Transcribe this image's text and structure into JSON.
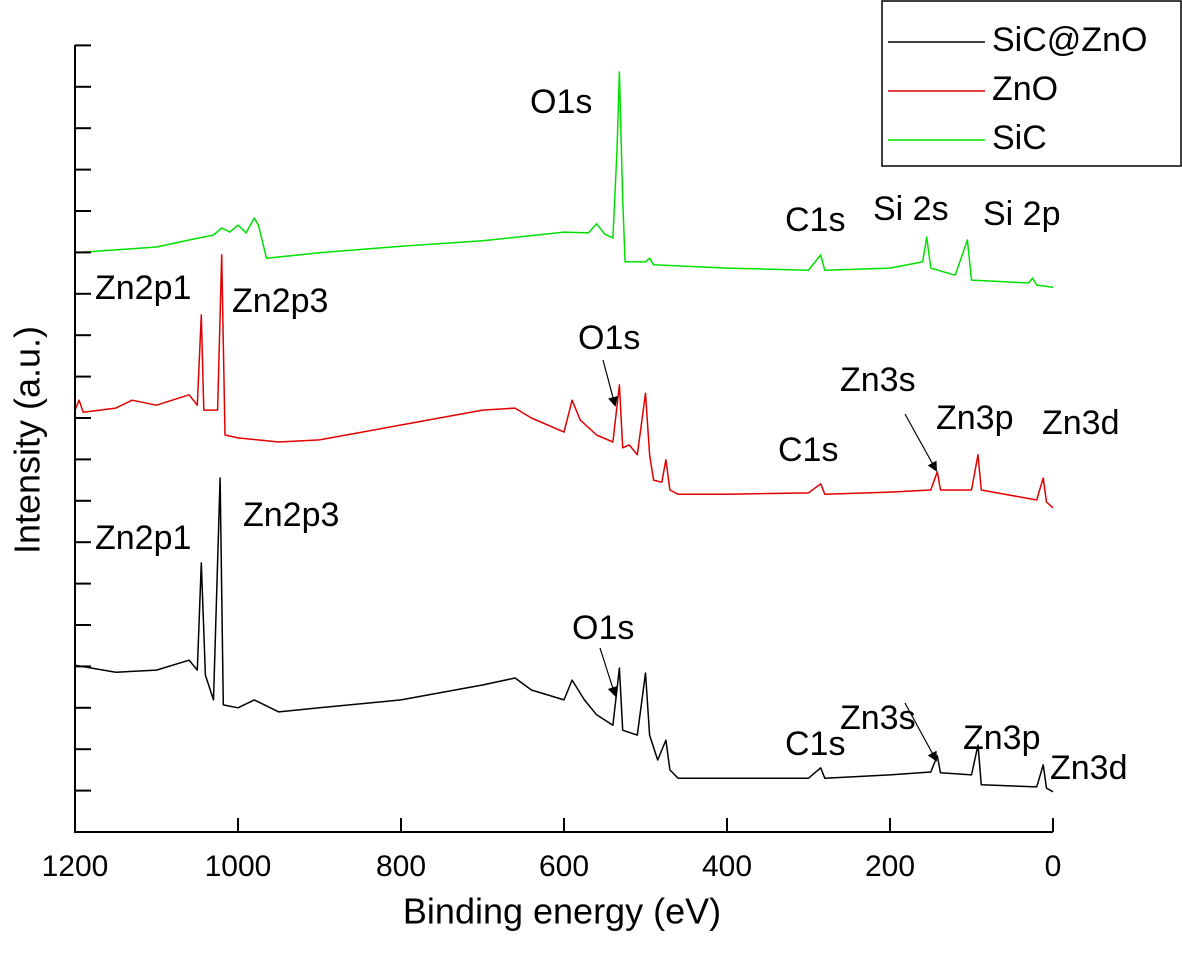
{
  "chart_data": {
    "type": "line",
    "x_label": "Binding energy (eV)",
    "y_label": "Intensity (a.u.)",
    "xlim": [
      1200,
      0
    ],
    "xticks": [
      1200,
      1000,
      800,
      600,
      400,
      200,
      0
    ],
    "ylim": [
      0,
      19
    ],
    "yticks": [
      1,
      2,
      3,
      4,
      5,
      6,
      7,
      8,
      9,
      10,
      11,
      12,
      13,
      14,
      15,
      16,
      17,
      18,
      19
    ],
    "legend_position": "upper right",
    "series": [
      {
        "name": "SiC@ZnO",
        "color": "#000000",
        "x": [
          1200,
          1150,
          1100,
          1060,
          1050,
          1045,
          1040,
          1030,
          1022,
          1018,
          1000,
          980,
          950,
          900,
          800,
          700,
          660,
          640,
          600,
          590,
          575,
          560,
          540,
          532,
          528,
          510,
          500,
          495,
          485,
          475,
          470,
          460,
          400,
          300,
          285,
          280,
          200,
          150,
          142,
          138,
          100,
          92,
          88,
          20,
          12,
          8,
          0
        ],
        "values": [
          4.03,
          3.86,
          3.91,
          4.15,
          3.91,
          6.5,
          3.79,
          3.19,
          8.55,
          3.07,
          3.0,
          3.19,
          2.9,
          3.0,
          3.19,
          3.55,
          3.72,
          3.43,
          3.19,
          3.67,
          3.19,
          2.83,
          2.58,
          3.96,
          2.46,
          2.34,
          3.84,
          2.34,
          1.74,
          2.22,
          1.5,
          1.3,
          1.3,
          1.3,
          1.55,
          1.3,
          1.38,
          1.45,
          1.84,
          1.43,
          1.38,
          2.1,
          1.14,
          1.09,
          1.62,
          1.06,
          0.97
        ]
      },
      {
        "name": "ZnO",
        "color": "#e00000",
        "x": [
          1200,
          1195,
          1190,
          1150,
          1130,
          1100,
          1060,
          1050,
          1045,
          1042,
          1025,
          1020,
          1016,
          1000,
          950,
          900,
          800,
          700,
          660,
          640,
          600,
          590,
          580,
          560,
          540,
          532,
          528,
          520,
          510,
          500,
          495,
          490,
          480,
          475,
          470,
          460,
          400,
          300,
          285,
          280,
          200,
          150,
          142,
          138,
          100,
          92,
          88,
          20,
          12,
          8,
          0
        ],
        "values": [
          10.19,
          10.43,
          10.14,
          10.24,
          10.43,
          10.31,
          10.56,
          10.31,
          12.49,
          10.19,
          10.19,
          13.94,
          9.59,
          9.52,
          9.42,
          9.47,
          9.83,
          10.19,
          10.24,
          10.0,
          9.66,
          10.43,
          9.95,
          9.59,
          9.42,
          10.8,
          9.28,
          9.35,
          9.11,
          10.6,
          9.11,
          8.5,
          8.45,
          8.99,
          8.26,
          8.16,
          8.16,
          8.19,
          8.41,
          8.16,
          8.21,
          8.26,
          8.7,
          8.26,
          8.26,
          9.11,
          8.26,
          8.02,
          8.55,
          7.97,
          7.83
        ]
      },
      {
        "name": "SiC",
        "color": "#00e000",
        "x": [
          1200,
          1100,
          1060,
          1030,
          1020,
          1010,
          1000,
          990,
          980,
          975,
          965,
          900,
          800,
          700,
          600,
          570,
          560,
          550,
          540,
          535,
          532,
          528,
          525,
          500,
          495,
          490,
          400,
          300,
          285,
          280,
          200,
          160,
          155,
          150,
          120,
          105,
          100,
          30,
          25,
          20,
          0
        ],
        "values": [
          13.99,
          14.13,
          14.3,
          14.42,
          14.59,
          14.49,
          14.66,
          14.47,
          14.83,
          14.66,
          13.86,
          13.99,
          14.15,
          14.28,
          14.49,
          14.47,
          14.69,
          14.44,
          14.35,
          16.47,
          18.36,
          15.27,
          13.77,
          13.77,
          13.86,
          13.7,
          13.62,
          13.57,
          13.94,
          13.57,
          13.62,
          13.77,
          14.37,
          13.62,
          13.45,
          14.3,
          13.33,
          13.26,
          13.38,
          13.21,
          13.16
        ]
      }
    ],
    "annotations": [
      "O1s",
      "C1s",
      "Si 2s",
      "Si 2p",
      "Zn2p1",
      "Zn2p3",
      "O1s",
      "Zn3s",
      "Zn3p",
      "Zn3d",
      "C1s",
      "Zn2p1",
      "Zn2p3",
      "O1s",
      "Zn3s",
      "Zn3p",
      "Zn3d",
      "C1s"
    ]
  }
}
